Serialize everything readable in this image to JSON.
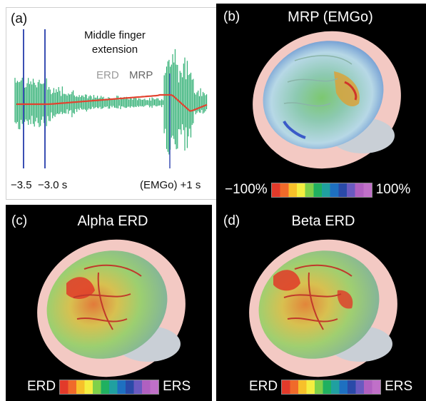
{
  "panel_a": {
    "label": "(a)",
    "title_line1": "Middle finger",
    "title_line2": "extension",
    "legend_erd": "ERD",
    "legend_mrp": "MRP",
    "tick_left1": "−3.5",
    "tick_left2": "−3.0 s",
    "tick_right": "(EMGo) +1 s",
    "colors": {
      "emg": "#1fa968",
      "mrp": "#e2422f",
      "markers": "#3a4fb3",
      "erd_text": "#9a9a9a",
      "mrp_text": "#666666"
    }
  },
  "panel_b": {
    "label": "(b)",
    "title": "MRP (EMGo)",
    "scale_min": "−100%",
    "scale_max": "100%"
  },
  "panel_c": {
    "label": "(c)",
    "title": "Alpha ERD",
    "scale_left": "ERD",
    "scale_right": "ERS"
  },
  "panel_d": {
    "label": "(d)",
    "title": "Beta ERD",
    "scale_left": "ERD",
    "scale_right": "ERS"
  },
  "colorbar_colors": [
    "#e23a2a",
    "#f06a2a",
    "#f7c02a",
    "#f4ee40",
    "#7fd04a",
    "#20b060",
    "#20a0a0",
    "#1e70c0",
    "#2a4aa8",
    "#6a5ac0",
    "#b060c0",
    "#c070c8"
  ]
}
